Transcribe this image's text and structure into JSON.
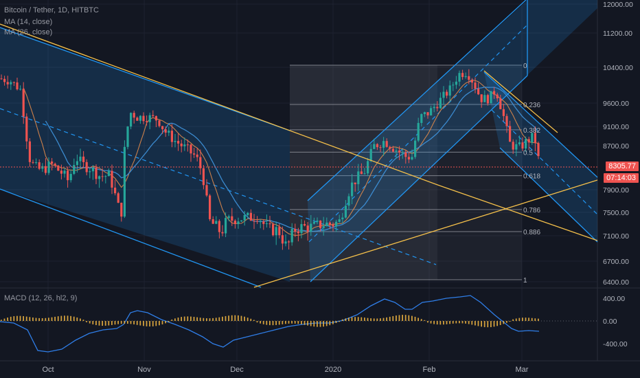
{
  "legend": {
    "title": "Bitcoin / Tether, 1D, HITBTC",
    "ma1": "MA (14, close)",
    "ma2": "MA (26, close)",
    "macd": "MACD (12, 26, hl2, 9)"
  },
  "price_tag": "8305.77",
  "time_tag": "07:14:03",
  "colors": {
    "background": "#131722",
    "up": "#26a69a",
    "down": "#ef5350",
    "channel": "#2196f3",
    "trendline": "#f5c04a",
    "ma_fast": "#e0894a",
    "ma_slow": "#3d8fd6",
    "macd_line": "#2f7ee8",
    "hist": "#f5b942"
  },
  "chart_data": {
    "type": "candlestick",
    "title": "Bitcoin / Tether, 1D, HITBTC",
    "y_axis": {
      "ticks": [
        "12000.00",
        "11200.00",
        "10400.00",
        "9600.00",
        "9100.00",
        "8700.00",
        "8305.77",
        "7900.00",
        "7500.00",
        "7100.00",
        "6700.00",
        "6400.00"
      ],
      "tick_values": [
        12000,
        11200,
        10400,
        9600,
        9100,
        8700,
        8305.77,
        7900,
        7500,
        7100,
        6700,
        6400
      ],
      "range": [
        6400,
        12000
      ]
    },
    "x_axis": {
      "labels": [
        "Oct",
        "Nov",
        "Dec",
        "2020",
        "Feb",
        "Mar"
      ]
    },
    "fib_levels": [
      {
        "label": "0",
        "price": 10450
      },
      {
        "label": "0.236",
        "price": 9570
      },
      {
        "label": "0.382",
        "price": 9030
      },
      {
        "label": "0.5",
        "price": 8580
      },
      {
        "label": "0.618",
        "price": 8150
      },
      {
        "label": "0.786",
        "price": 7550
      },
      {
        "label": "0.886",
        "price": 7170
      },
      {
        "label": "1",
        "price": 6430
      }
    ],
    "macd_axis": {
      "ticks": [
        "400.00",
        "0.00",
        "-400.00"
      ],
      "tick_values": [
        400,
        0,
        -400
      ]
    },
    "last_price": 8305.77
  }
}
